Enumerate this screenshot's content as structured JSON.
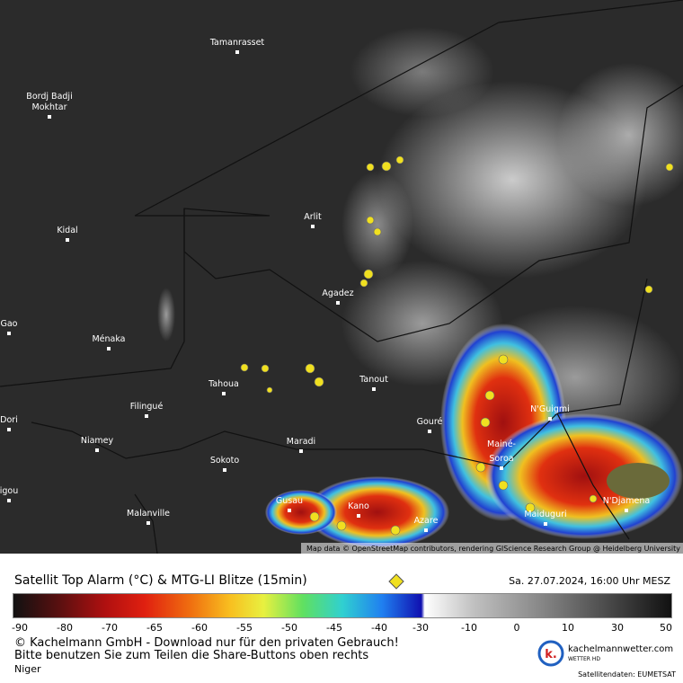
{
  "map": {
    "attribution": "Map data © OpenStreetMap contributors, rendering GIScience Research Group @ Heidelberg University",
    "places": [
      {
        "label": "Tamanrasset"
      },
      {
        "label": "Bordj Badji"
      },
      {
        "label": "Mokhtar"
      },
      {
        "label": "Kidal"
      },
      {
        "label": "Arlit"
      },
      {
        "label": "Agadez"
      },
      {
        "label": "Gao"
      },
      {
        "label": "Ménaka"
      },
      {
        "label": "Tahoua"
      },
      {
        "label": "Tanout"
      },
      {
        "label": "Filingué"
      },
      {
        "label": "Dori"
      },
      {
        "label": "Niamey"
      },
      {
        "label": "Gouré"
      },
      {
        "label": "Maradi"
      },
      {
        "label": "N'Guigmi"
      },
      {
        "label": "Mainé-"
      },
      {
        "label": "Soroa"
      },
      {
        "label": "Sokoto"
      },
      {
        "label": "Gusau"
      },
      {
        "label": "Kano"
      },
      {
        "label": "Azare"
      },
      {
        "label": "Maiduguri"
      },
      {
        "label": "N'Djamena"
      },
      {
        "label": "Malanville"
      },
      {
        "label": "igou"
      }
    ]
  },
  "legend": {
    "title": "Satellit Top Alarm (°C) & MTG-LI Blitze (15min)",
    "timestamp": "Sa. 27.07.2024, 16:00 Uhr MESZ",
    "ticks": [
      "-90",
      "-80",
      "-70",
      "-65",
      "-60",
      "-55",
      "-50",
      "-45",
      "-40",
      "-30",
      "-10",
      "0",
      "10",
      "30",
      "50"
    ]
  },
  "footer": {
    "copyright": "© Kachelmann GmbH - Download nur für den privaten Gebrauch!",
    "share_note": "Bitte benutzen Sie zum Teilen die Share-Buttons oben rechts",
    "region": "Niger",
    "logo_text": "kachelmannwetter.com",
    "logo_sub": "WETTER HD",
    "data_source": "Satellitendaten: EUMETSAT"
  }
}
